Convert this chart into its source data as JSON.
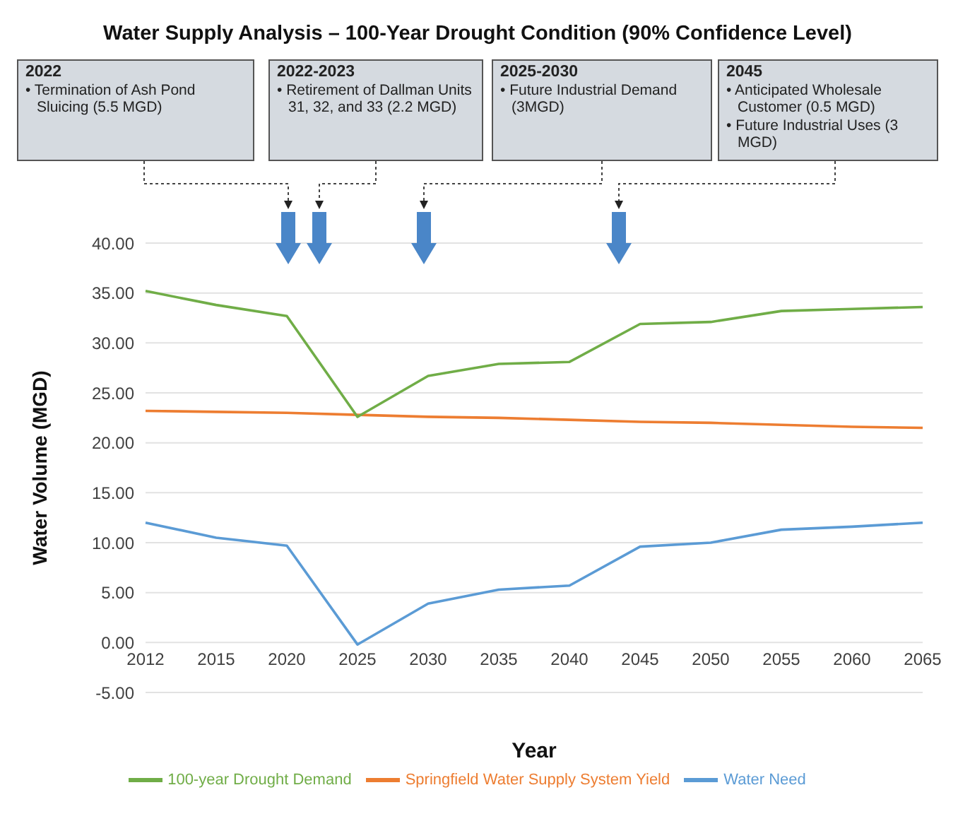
{
  "chart_data": {
    "type": "line",
    "title": "Water Supply Analysis – 100-Year Drought Condition (90% Confidence Level)",
    "xlabel": "Year",
    "ylabel": "Water Volume (MGD)",
    "categories": [
      "2012",
      "2015",
      "2020",
      "2025",
      "2030",
      "2035",
      "2040",
      "2045",
      "2050",
      "2055",
      "2060",
      "2065"
    ],
    "series": [
      {
        "name": "Water Need",
        "color": "#5b9bd5",
        "values": [
          12.0,
          10.5,
          9.7,
          -0.2,
          3.9,
          5.3,
          5.7,
          9.6,
          10.0,
          11.3,
          11.6,
          12.0
        ]
      },
      {
        "name": "Springfield Water Supply System Yield",
        "color": "#ed7d31",
        "values": [
          23.2,
          23.1,
          23.0,
          22.8,
          22.6,
          22.5,
          22.3,
          22.1,
          22.0,
          21.8,
          21.6,
          21.5
        ]
      },
      {
        "name": "100-year Drought Demand",
        "color": "#70ad47",
        "values": [
          35.2,
          33.8,
          32.7,
          22.6,
          26.7,
          27.9,
          28.1,
          31.9,
          32.1,
          33.2,
          33.4,
          33.6
        ]
      }
    ],
    "ylim": [
      -5,
      40
    ],
    "yticks": [
      {
        "value": -5,
        "label": "-5.00"
      },
      {
        "value": 0,
        "label": "0.00"
      },
      {
        "value": 5,
        "label": "5.00"
      },
      {
        "value": 10,
        "label": "10.00"
      },
      {
        "value": 15,
        "label": "15.00"
      },
      {
        "value": 20,
        "label": "20.00"
      },
      {
        "value": 25,
        "label": "25.00"
      },
      {
        "value": 30,
        "label": "30.00"
      },
      {
        "value": 35,
        "label": "35.00"
      },
      {
        "value": 40,
        "label": "40.00"
      }
    ],
    "grid": "y",
    "legend": "bottom",
    "marker": "none",
    "line_style": "solid",
    "annotations": [
      "2022\n• Termination of Ash Pond Sluicing (5.5 MGD)",
      "2022-2023\n• Retirement of Dallman Units 31, 32, and 33 (2.2 MGD)",
      "2025-2030\n• Future Industrial Demand (3MGD)",
      "2045\n• Anticipated Wholesale Customer (0.5 MGD)\n• Future Industrial Uses (3 MGD)"
    ]
  }
}
